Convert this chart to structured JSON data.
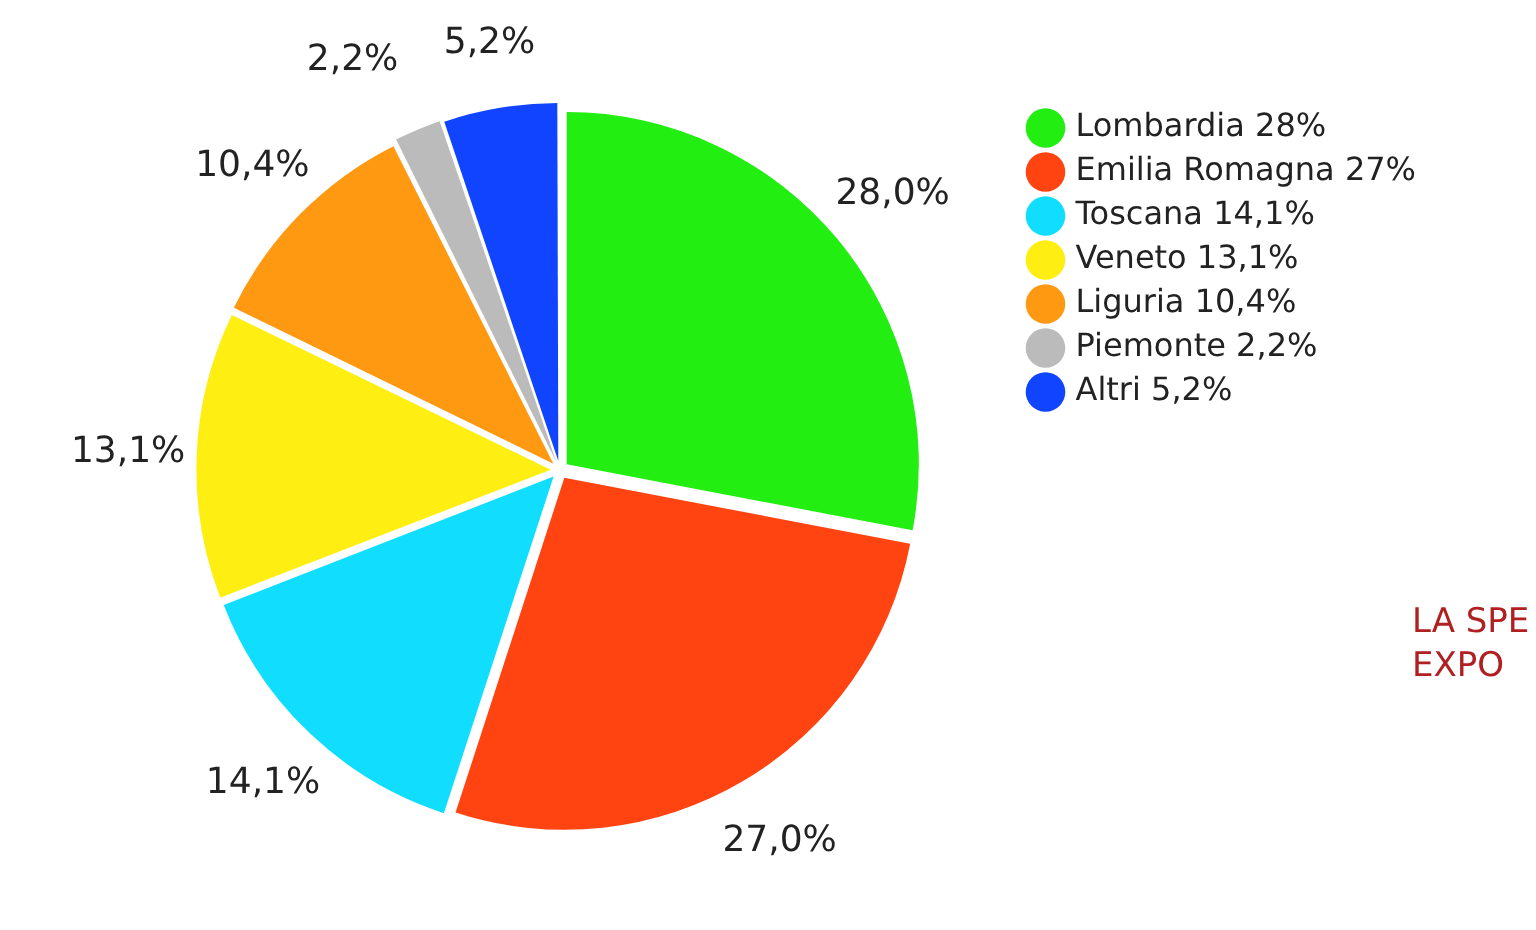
{
  "chart_data": {
    "type": "pie",
    "categories": [
      "Lombardia 28%",
      "Emilia Romagna 27%",
      "Toscana 14,1%",
      "Veneto 13,1%",
      "Liguria 10,4%",
      "Piemonte 2,2%",
      "Altri 5,2%"
    ],
    "values": [
      28.0,
      27.0,
      14.1,
      13.1,
      10.4,
      2.2,
      5.2
    ],
    "value_labels": [
      "28,0%",
      "27,0%",
      "14,1%",
      "13,1%",
      "10,4%",
      "2,2%",
      "5,2%"
    ],
    "colors": [
      "#22ee11",
      "#ff4411",
      "#11ddff",
      "#ffee11",
      "#ff9911",
      "#bbbbbb",
      "#1144ff"
    ],
    "legend": "top right",
    "annotations": [
      "LA SPE",
      "EXPO"
    ]
  }
}
